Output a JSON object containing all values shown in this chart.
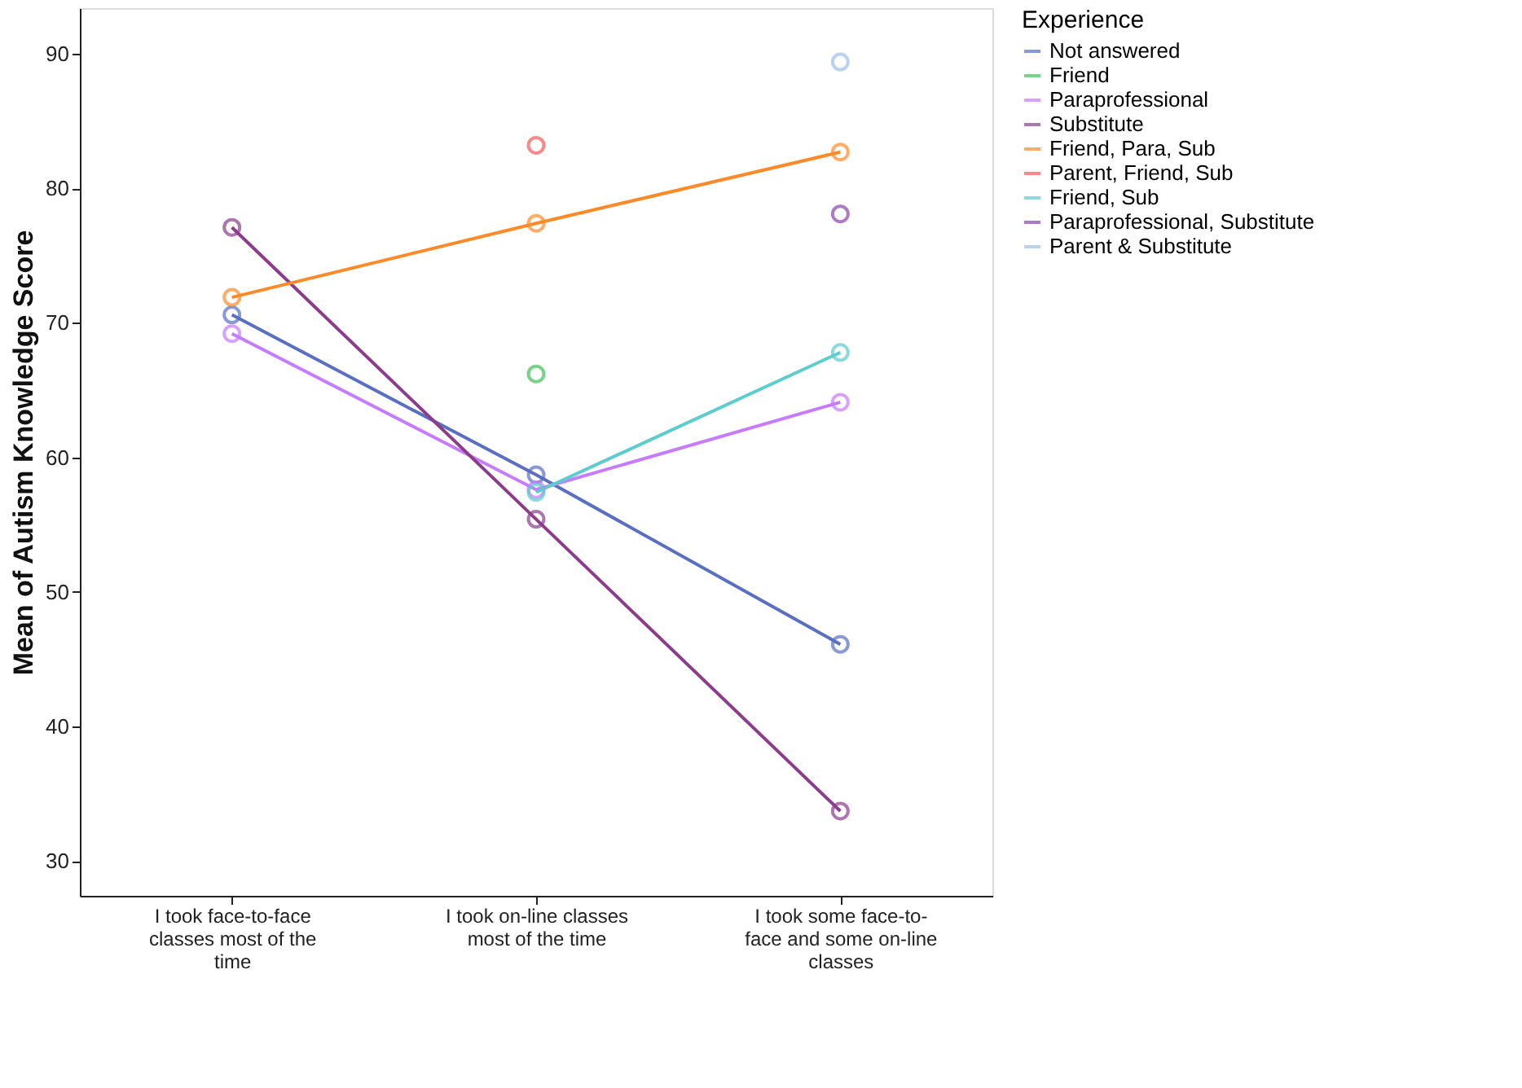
{
  "chart_data": {
    "type": "line",
    "ylabel": "Mean of Autism Knowledge Score",
    "legend_title": "Experience",
    "legend": "right",
    "marker": "circle",
    "grid": false,
    "categories": [
      "I took face-to-face classes most of the time",
      "I took on-line classes most of the time",
      "I took some face-to-face and some on-line classes"
    ],
    "ylim": [
      27.4,
      93.4
    ],
    "yticks": [
      30,
      40,
      50,
      60,
      70,
      80,
      90
    ],
    "series": [
      {
        "name": "Not answered",
        "color": "#5a6fc0",
        "values": [
          70.6,
          58.7,
          46.1
        ]
      },
      {
        "name": "Friend",
        "color": "#3fbf5a",
        "values": [
          null,
          66.2,
          null
        ]
      },
      {
        "name": "Paraprofessional",
        "color": "#c77cff",
        "values": [
          69.2,
          57.6,
          64.1
        ]
      },
      {
        "name": "Substitute",
        "color": "#8b3d8b",
        "values": [
          77.1,
          55.4,
          33.7
        ]
      },
      {
        "name": "Friend, Para, Sub",
        "color": "#ff8a2a",
        "values": [
          71.9,
          77.4,
          82.7
        ]
      },
      {
        "name": "Parent, Friend, Sub",
        "color": "#f05a5a",
        "values": [
          null,
          83.2,
          null
        ]
      },
      {
        "name": "Friend, Sub",
        "color": "#5ccccc",
        "values": [
          null,
          57.4,
          67.8
        ]
      },
      {
        "name": "Paraprofessional, Substitute",
        "color": "#8a44b0",
        "values": [
          null,
          null,
          78.1
        ]
      },
      {
        "name": "Parent & Substitute",
        "color": "#9fbfe8",
        "values": [
          null,
          null,
          89.4
        ]
      }
    ]
  }
}
